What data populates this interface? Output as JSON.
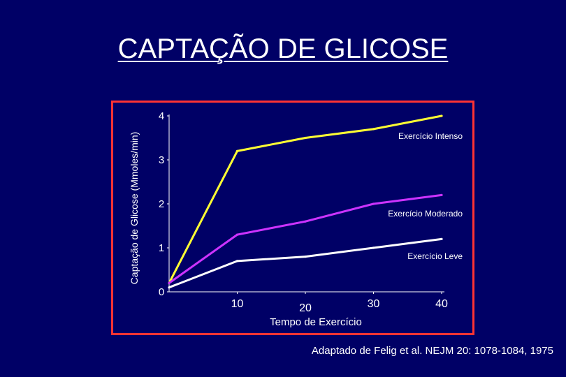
{
  "title": "CAPTAÇÃO DE GLICOSE",
  "source_note": "Adaptado de Felig et al. NEJM 20: 1078-1084, 1975",
  "colors": {
    "background": "#000066",
    "frame": "#ff3333",
    "text": "#ffffff",
    "intense": "#ffff33",
    "moderate": "#cc33ff",
    "light": "#ffffff"
  },
  "chart_data": {
    "type": "line",
    "xlabel": "Tempo de Exercício",
    "ylabel": "Captação de Glicose (Mmoles/min)",
    "xlim": [
      0,
      40
    ],
    "ylim": [
      0,
      4
    ],
    "x_ticks": [
      10,
      20,
      30,
      40
    ],
    "y_ticks": [
      0,
      1,
      2,
      3,
      4
    ],
    "grid": false,
    "series": [
      {
        "name": "Exercício Intenso",
        "color": "#ffff33",
        "points": [
          [
            0,
            0.2
          ],
          [
            10,
            3.2
          ],
          [
            20,
            3.5
          ],
          [
            30,
            3.7
          ],
          [
            40,
            4.0
          ]
        ]
      },
      {
        "name": "Exercício Moderado",
        "color": "#cc33ff",
        "points": [
          [
            0,
            0.2
          ],
          [
            10,
            1.3
          ],
          [
            20,
            1.6
          ],
          [
            30,
            2.0
          ],
          [
            40,
            2.2
          ]
        ]
      },
      {
        "name": "Exercício Leve",
        "color": "#ffffff",
        "points": [
          [
            0,
            0.1
          ],
          [
            10,
            0.7
          ],
          [
            20,
            0.8
          ],
          [
            30,
            1.0
          ],
          [
            40,
            1.2
          ]
        ]
      }
    ]
  }
}
